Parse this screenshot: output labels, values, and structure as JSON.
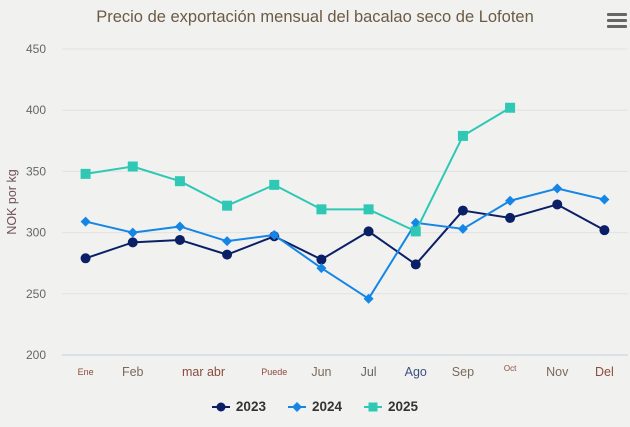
{
  "chart_data": {
    "type": "line",
    "title": "Precio de exportación mensual del bacalao seco de Lofoten",
    "xlabel": "",
    "ylabel": "NOK por kg",
    "ylim": [
      200,
      450
    ],
    "yticks": [
      200,
      250,
      300,
      350,
      400,
      450
    ],
    "grid": true,
    "legend_position": "bottom-center",
    "categories": [
      "Ene",
      "Feb",
      "mar abr",
      "",
      "Puede",
      "Jun",
      "Jul",
      "Ago",
      "Sep",
      "Oct",
      "Nov",
      "Del"
    ],
    "category_label_styles": [
      {
        "color": "#8b4a3c",
        "size": "small"
      },
      {
        "color": "#7a6a5a",
        "size": "normal"
      },
      {
        "color": "#8b4a3c",
        "size": "normal"
      },
      {
        "color": "#8b4a3c",
        "size": "normal"
      },
      {
        "color": "#8b4a3c",
        "size": "small"
      },
      {
        "color": "#7a6a5a",
        "size": "normal"
      },
      {
        "color": "#666666",
        "size": "normal"
      },
      {
        "color": "#3c5080",
        "size": "normal"
      },
      {
        "color": "#7a6a5a",
        "size": "normal"
      },
      {
        "color": "#8b4a3c",
        "size": "tiny"
      },
      {
        "color": "#7a6a5a",
        "size": "normal"
      },
      {
        "color": "#8b4a3c",
        "size": "normal"
      }
    ],
    "series": [
      {
        "name": "2023",
        "color": "#0b1f66",
        "marker": "circle",
        "values": [
          279,
          292,
          294,
          282,
          297,
          278,
          301,
          274,
          318,
          312,
          323,
          302
        ]
      },
      {
        "name": "2024",
        "color": "#1585e6",
        "marker": "diamond",
        "values": [
          309,
          300,
          305,
          293,
          298,
          271,
          246,
          308,
          303,
          326,
          336,
          327
        ]
      },
      {
        "name": "2025",
        "color": "#2ec8b5",
        "marker": "square",
        "values": [
          348,
          354,
          342,
          322,
          339,
          319,
          319,
          301,
          379,
          402,
          null,
          null
        ]
      }
    ]
  },
  "ui": {
    "menu_icon": "hamburger-menu-icon"
  }
}
